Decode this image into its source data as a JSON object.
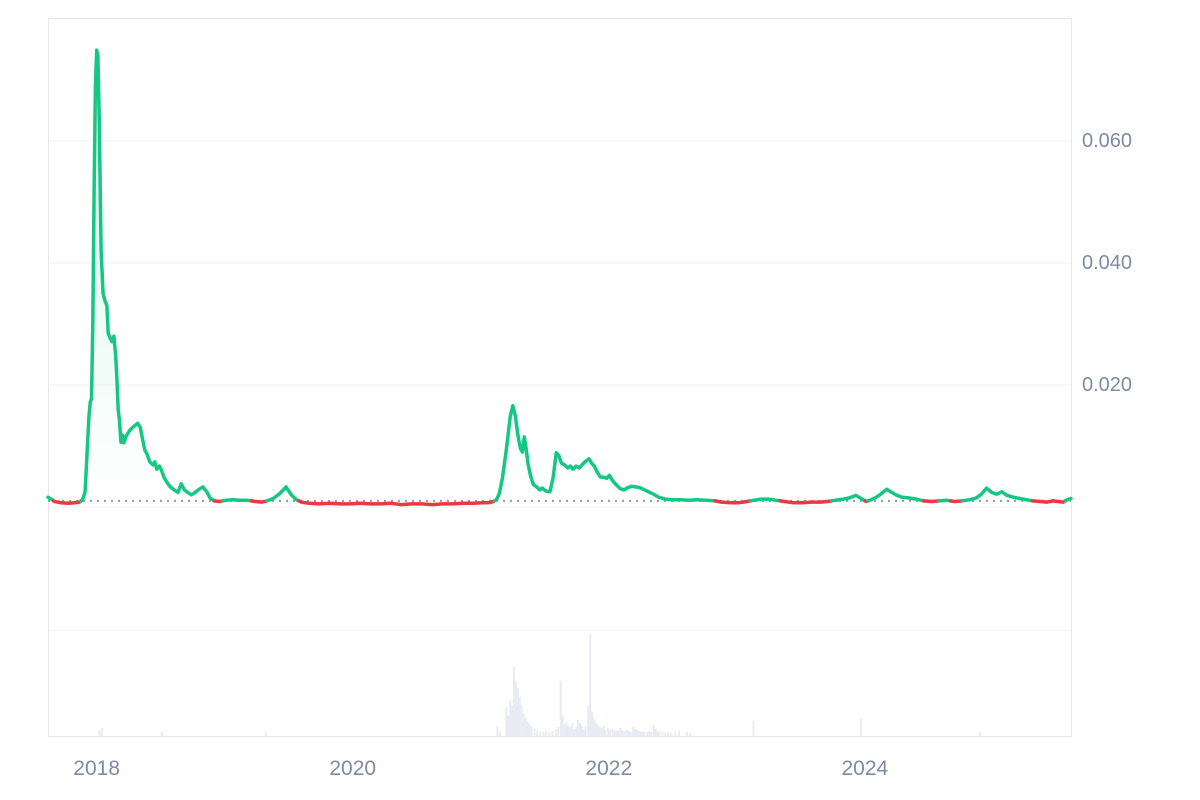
{
  "page": {
    "background": "#ffffff"
  },
  "chart_data": {
    "type": "line",
    "title": "",
    "xlabel": "",
    "ylabel": "",
    "legend": false,
    "grid": true,
    "xlim": [
      2017.62,
      2025.61
    ],
    "ylim": [
      0,
      0.08
    ],
    "yticks": [
      {
        "value": 0.02,
        "label": "0.020"
      },
      {
        "value": 0.04,
        "label": "0.040"
      },
      {
        "value": 0.06,
        "label": "0.060"
      }
    ],
    "xticks": [
      {
        "value": 2018,
        "label": "2018"
      },
      {
        "value": 2020,
        "label": "2020"
      },
      {
        "value": 2022,
        "label": "2022"
      },
      {
        "value": 2024,
        "label": "2024"
      }
    ],
    "baseline_price": 0.001,
    "series": [
      {
        "name": "price",
        "points": [
          [
            2017.62,
            0.0016
          ],
          [
            2017.645,
            0.0013
          ],
          [
            2017.67,
            0.0009
          ],
          [
            2017.72,
            0.0007
          ],
          [
            2017.78,
            0.0006
          ],
          [
            2017.83,
            0.0007
          ],
          [
            2017.865,
            0.0008
          ],
          [
            2017.89,
            0.0012
          ],
          [
            2017.91,
            0.0025
          ],
          [
            2017.925,
            0.009
          ],
          [
            2017.94,
            0.015
          ],
          [
            2017.95,
            0.0172
          ],
          [
            2017.96,
            0.0178
          ],
          [
            2017.97,
            0.03
          ],
          [
            2017.98,
            0.052
          ],
          [
            2017.99,
            0.069
          ],
          [
            2018.0,
            0.0749
          ],
          [
            2018.01,
            0.074
          ],
          [
            2018.02,
            0.064
          ],
          [
            2018.035,
            0.042
          ],
          [
            2018.05,
            0.035
          ],
          [
            2018.065,
            0.0338
          ],
          [
            2018.08,
            0.033
          ],
          [
            2018.09,
            0.0285
          ],
          [
            2018.105,
            0.0277
          ],
          [
            2018.12,
            0.0271
          ],
          [
            2018.135,
            0.028
          ],
          [
            2018.148,
            0.025
          ],
          [
            2018.158,
            0.021
          ],
          [
            2018.168,
            0.016
          ],
          [
            2018.178,
            0.0143
          ],
          [
            2018.19,
            0.0106
          ],
          [
            2018.202,
            0.0118
          ],
          [
            2018.212,
            0.0105
          ],
          [
            2018.23,
            0.0116
          ],
          [
            2018.26,
            0.0126
          ],
          [
            2018.3,
            0.0134
          ],
          [
            2018.32,
            0.0137
          ],
          [
            2018.34,
            0.0131
          ],
          [
            2018.36,
            0.011
          ],
          [
            2018.375,
            0.0094
          ],
          [
            2018.395,
            0.0086
          ],
          [
            2018.415,
            0.0074
          ],
          [
            2018.44,
            0.0069
          ],
          [
            2018.455,
            0.0074
          ],
          [
            2018.47,
            0.0062
          ],
          [
            2018.49,
            0.0067
          ],
          [
            2018.505,
            0.0061
          ],
          [
            2018.525,
            0.0049
          ],
          [
            2018.55,
            0.004
          ],
          [
            2018.575,
            0.0033
          ],
          [
            2018.605,
            0.0028
          ],
          [
            2018.635,
            0.0024
          ],
          [
            2018.66,
            0.0038
          ],
          [
            2018.685,
            0.0028
          ],
          [
            2018.71,
            0.0024
          ],
          [
            2018.74,
            0.002
          ],
          [
            2018.77,
            0.0024
          ],
          [
            2018.8,
            0.0029
          ],
          [
            2018.83,
            0.0033
          ],
          [
            2018.86,
            0.0025
          ],
          [
            2018.885,
            0.0015
          ],
          [
            2018.92,
            0.001
          ],
          [
            2018.96,
            0.0009
          ],
          [
            2019.01,
            0.0011
          ],
          [
            2019.06,
            0.0012
          ],
          [
            2019.12,
            0.0011
          ],
          [
            2019.18,
            0.0011
          ],
          [
            2019.24,
            0.0009
          ],
          [
            2019.29,
            0.0008
          ],
          [
            2019.33,
            0.001
          ],
          [
            2019.38,
            0.0014
          ],
          [
            2019.43,
            0.0022
          ],
          [
            2019.48,
            0.0033
          ],
          [
            2019.52,
            0.002
          ],
          [
            2019.56,
            0.0012
          ],
          [
            2019.6,
            0.0008
          ],
          [
            2019.66,
            0.0006
          ],
          [
            2019.74,
            0.0005
          ],
          [
            2019.82,
            0.0006
          ],
          [
            2019.9,
            0.0005
          ],
          [
            2019.98,
            0.0005
          ],
          [
            2020.06,
            0.0006
          ],
          [
            2020.14,
            0.0005
          ],
          [
            2020.22,
            0.0005
          ],
          [
            2020.3,
            0.0006
          ],
          [
            2020.38,
            0.0004
          ],
          [
            2020.46,
            0.0005
          ],
          [
            2020.54,
            0.0005
          ],
          [
            2020.62,
            0.0004
          ],
          [
            2020.7,
            0.0005
          ],
          [
            2020.78,
            0.0005
          ],
          [
            2020.86,
            0.0006
          ],
          [
            2020.94,
            0.0006
          ],
          [
            2021.01,
            0.0007
          ],
          [
            2021.06,
            0.0007
          ],
          [
            2021.1,
            0.0009
          ],
          [
            2021.125,
            0.0013
          ],
          [
            2021.145,
            0.0022
          ],
          [
            2021.17,
            0.0048
          ],
          [
            2021.2,
            0.0095
          ],
          [
            2021.23,
            0.0148
          ],
          [
            2021.25,
            0.0166
          ],
          [
            2021.27,
            0.015
          ],
          [
            2021.29,
            0.0118
          ],
          [
            2021.31,
            0.0096
          ],
          [
            2021.325,
            0.009
          ],
          [
            2021.34,
            0.0115
          ],
          [
            2021.355,
            0.0095
          ],
          [
            2021.37,
            0.007
          ],
          [
            2021.39,
            0.005
          ],
          [
            2021.41,
            0.0037
          ],
          [
            2021.435,
            0.0033
          ],
          [
            2021.46,
            0.0028
          ],
          [
            2021.48,
            0.0031
          ],
          [
            2021.51,
            0.0026
          ],
          [
            2021.54,
            0.0025
          ],
          [
            2021.565,
            0.0048
          ],
          [
            2021.59,
            0.0089
          ],
          [
            2021.61,
            0.0084
          ],
          [
            2021.63,
            0.0072
          ],
          [
            2021.655,
            0.0069
          ],
          [
            2021.68,
            0.0064
          ],
          [
            2021.7,
            0.0067
          ],
          [
            2021.72,
            0.0062
          ],
          [
            2021.745,
            0.0067
          ],
          [
            2021.77,
            0.0064
          ],
          [
            2021.795,
            0.007
          ],
          [
            2021.82,
            0.0075
          ],
          [
            2021.845,
            0.0079
          ],
          [
            2021.87,
            0.0071
          ],
          [
            2021.89,
            0.0066
          ],
          [
            2021.91,
            0.0057
          ],
          [
            2021.935,
            0.0049
          ],
          [
            2021.96,
            0.0049
          ],
          [
            2021.985,
            0.0047
          ],
          [
            2022.005,
            0.0052
          ],
          [
            2022.03,
            0.0043
          ],
          [
            2022.06,
            0.0036
          ],
          [
            2022.09,
            0.003
          ],
          [
            2022.12,
            0.0028
          ],
          [
            2022.15,
            0.0032
          ],
          [
            2022.18,
            0.0034
          ],
          [
            2022.21,
            0.0033
          ],
          [
            2022.24,
            0.0032
          ],
          [
            2022.27,
            0.0029
          ],
          [
            2022.31,
            0.0025
          ],
          [
            2022.35,
            0.0021
          ],
          [
            2022.39,
            0.0016
          ],
          [
            2022.44,
            0.0013
          ],
          [
            2022.5,
            0.0012
          ],
          [
            2022.56,
            0.0012
          ],
          [
            2022.62,
            0.0011
          ],
          [
            2022.69,
            0.0012
          ],
          [
            2022.76,
            0.0011
          ],
          [
            2022.83,
            0.001
          ],
          [
            2022.88,
            0.0008
          ],
          [
            2022.95,
            0.0007
          ],
          [
            2023.02,
            0.0007
          ],
          [
            2023.08,
            0.0009
          ],
          [
            2023.13,
            0.0011
          ],
          [
            2023.19,
            0.0013
          ],
          [
            2023.25,
            0.0013
          ],
          [
            2023.31,
            0.0011
          ],
          [
            2023.37,
            0.0009
          ],
          [
            2023.44,
            0.0007
          ],
          [
            2023.51,
            0.0007
          ],
          [
            2023.58,
            0.0008
          ],
          [
            2023.65,
            0.0008
          ],
          [
            2023.71,
            0.0009
          ],
          [
            2023.77,
            0.0011
          ],
          [
            2023.83,
            0.0013
          ],
          [
            2023.88,
            0.0015
          ],
          [
            2023.93,
            0.0019
          ],
          [
            2023.97,
            0.0014
          ],
          [
            2024.01,
            0.0009
          ],
          [
            2024.05,
            0.0012
          ],
          [
            2024.09,
            0.0016
          ],
          [
            2024.13,
            0.0022
          ],
          [
            2024.17,
            0.0029
          ],
          [
            2024.21,
            0.0024
          ],
          [
            2024.25,
            0.0019
          ],
          [
            2024.29,
            0.0016
          ],
          [
            2024.34,
            0.0015
          ],
          [
            2024.4,
            0.0013
          ],
          [
            2024.46,
            0.001
          ],
          [
            2024.52,
            0.0009
          ],
          [
            2024.58,
            0.001
          ],
          [
            2024.64,
            0.0011
          ],
          [
            2024.7,
            0.0009
          ],
          [
            2024.76,
            0.001
          ],
          [
            2024.82,
            0.0012
          ],
          [
            2024.87,
            0.0015
          ],
          [
            2024.91,
            0.0021
          ],
          [
            2024.95,
            0.0031
          ],
          [
            2024.99,
            0.0024
          ],
          [
            2025.03,
            0.0021
          ],
          [
            2025.07,
            0.0025
          ],
          [
            2025.11,
            0.0019
          ],
          [
            2025.16,
            0.0016
          ],
          [
            2025.21,
            0.0014
          ],
          [
            2025.26,
            0.0012
          ],
          [
            2025.31,
            0.001
          ],
          [
            2025.37,
            0.0009
          ],
          [
            2025.42,
            0.0008
          ],
          [
            2025.47,
            0.001
          ],
          [
            2025.51,
            0.0009
          ],
          [
            2025.55,
            0.0008
          ],
          [
            2025.58,
            0.0012
          ],
          [
            2025.61,
            0.0014
          ]
        ]
      }
    ],
    "volume_pct_of_max": [
      [
        2018.02,
        5
      ],
      [
        2018.04,
        8
      ],
      [
        2018.51,
        4
      ],
      [
        2019.32,
        4
      ],
      [
        2021.13,
        10
      ],
      [
        2021.15,
        4
      ],
      [
        2021.2,
        28
      ],
      [
        2021.215,
        20
      ],
      [
        2021.23,
        35
      ],
      [
        2021.245,
        30
      ],
      [
        2021.26,
        68
      ],
      [
        2021.275,
        54
      ],
      [
        2021.29,
        47
      ],
      [
        2021.305,
        38
      ],
      [
        2021.32,
        30
      ],
      [
        2021.335,
        22
      ],
      [
        2021.35,
        18
      ],
      [
        2021.365,
        14
      ],
      [
        2021.38,
        12
      ],
      [
        2021.395,
        10
      ],
      [
        2021.42,
        7
      ],
      [
        2021.44,
        5
      ],
      [
        2021.465,
        4
      ],
      [
        2021.49,
        4
      ],
      [
        2021.51,
        5
      ],
      [
        2021.535,
        4
      ],
      [
        2021.56,
        5
      ],
      [
        2021.585,
        7
      ],
      [
        2021.605,
        9
      ],
      [
        2021.625,
        54
      ],
      [
        2021.64,
        20
      ],
      [
        2021.655,
        12
      ],
      [
        2021.67,
        14
      ],
      [
        2021.685,
        10
      ],
      [
        2021.7,
        9
      ],
      [
        2021.715,
        12
      ],
      [
        2021.73,
        7
      ],
      [
        2021.745,
        9
      ],
      [
        2021.76,
        16
      ],
      [
        2021.775,
        13
      ],
      [
        2021.79,
        10
      ],
      [
        2021.805,
        7
      ],
      [
        2021.82,
        9
      ],
      [
        2021.84,
        30
      ],
      [
        2021.855,
        100
      ],
      [
        2021.87,
        24
      ],
      [
        2021.885,
        17
      ],
      [
        2021.9,
        13
      ],
      [
        2021.915,
        11
      ],
      [
        2021.93,
        9
      ],
      [
        2021.945,
        8
      ],
      [
        2021.96,
        10
      ],
      [
        2021.975,
        6
      ],
      [
        2021.995,
        8
      ],
      [
        2022.01,
        6
      ],
      [
        2022.03,
        7
      ],
      [
        2022.045,
        6
      ],
      [
        2022.06,
        5
      ],
      [
        2022.075,
        6
      ],
      [
        2022.09,
        8
      ],
      [
        2022.105,
        6
      ],
      [
        2022.12,
        5
      ],
      [
        2022.14,
        6
      ],
      [
        2022.155,
        5
      ],
      [
        2022.17,
        4
      ],
      [
        2022.19,
        9
      ],
      [
        2022.205,
        7
      ],
      [
        2022.22,
        6
      ],
      [
        2022.235,
        5
      ],
      [
        2022.25,
        4
      ],
      [
        2022.265,
        5
      ],
      [
        2022.28,
        4
      ],
      [
        2022.3,
        4
      ],
      [
        2022.315,
        5
      ],
      [
        2022.33,
        4
      ],
      [
        2022.35,
        11
      ],
      [
        2022.365,
        7
      ],
      [
        2022.38,
        5
      ],
      [
        2022.395,
        4
      ],
      [
        2022.42,
        4
      ],
      [
        2022.44,
        3
      ],
      [
        2022.46,
        4
      ],
      [
        2022.49,
        3
      ],
      [
        2022.52,
        4
      ],
      [
        2022.55,
        5
      ],
      [
        2022.61,
        4
      ],
      [
        2022.64,
        3
      ],
      [
        2023.13,
        15
      ],
      [
        2023.97,
        17
      ],
      [
        2024.9,
        3
      ]
    ],
    "colors": {
      "up": "#16c784",
      "down": "#ea3943",
      "area_top": "rgba(22,199,132,0.18)",
      "area_bottom": "rgba(22,199,132,0)",
      "volume_bar": "#e8ecf2",
      "grid": "#f0f2f5",
      "frame": "#e4e7eb",
      "tick_label": "#7d8ba3",
      "baseline_dots": "#939aa6"
    }
  }
}
